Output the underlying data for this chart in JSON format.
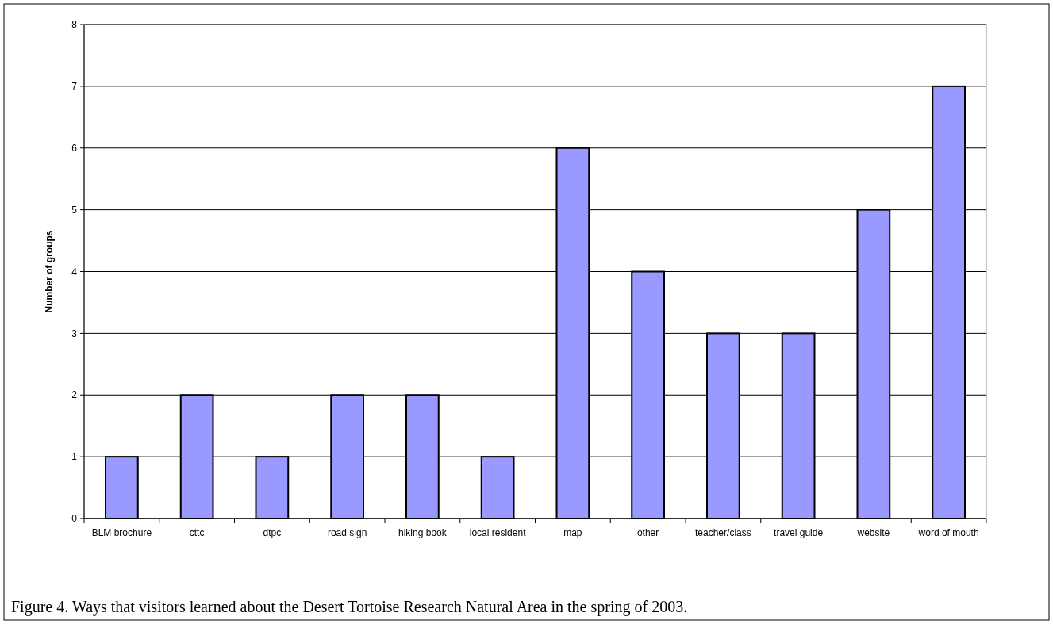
{
  "chart_data": {
    "type": "bar",
    "ylabel": "Number of groups",
    "categories": [
      "BLM brochure",
      "cttc",
      "dtpc",
      "road sign",
      "hiking book",
      "local resident",
      "map",
      "other",
      "teacher/class",
      "travel guide",
      "website",
      "word of mouth"
    ],
    "values": [
      1,
      2,
      1,
      2,
      2,
      1,
      6,
      4,
      3,
      3,
      5,
      7
    ],
    "color": "#9999ff",
    "ylim": [
      0,
      8
    ],
    "yticks": [
      0,
      1,
      2,
      3,
      4,
      5,
      6,
      7,
      8
    ],
    "grid": "y",
    "annotations": [
      "Figure 4. Ways that visitors learned about the Desert Tortoise Research Natural Area in the spring of 2003."
    ]
  }
}
